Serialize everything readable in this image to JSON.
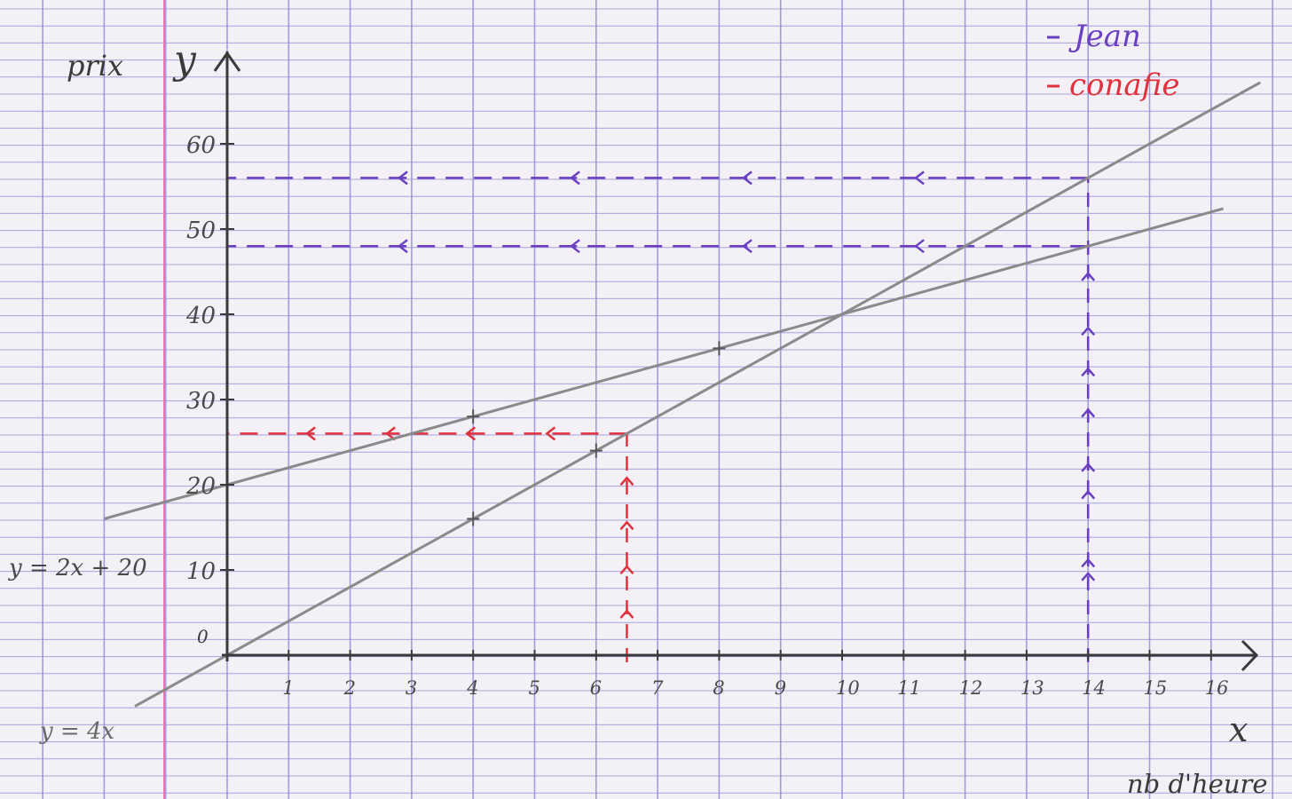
{
  "paper": {
    "grid_color": "#8f88d8",
    "margin_color": "#e879b7",
    "background": "#f3f1f6"
  },
  "chart_data": {
    "type": "line",
    "axes": {
      "y_label": "prix",
      "y_symbol": "y",
      "x_symbol": "x",
      "x_label": "nb d'heure",
      "origin_label": "0",
      "xlim": [
        0,
        16
      ],
      "ylim": [
        0,
        60
      ],
      "x_ticks": [
        1,
        2,
        3,
        4,
        5,
        6,
        7,
        8,
        9,
        10,
        11,
        12,
        13,
        14,
        15,
        16
      ],
      "y_ticks": [
        10,
        20,
        30,
        40,
        50,
        60
      ]
    },
    "series": [
      {
        "name": "y = 2x + 20",
        "label_text": "y = 2x + 20",
        "slope": 2,
        "intercept": 20,
        "x_range": [
          -2,
          16.2
        ],
        "color": "#8a8a8a"
      },
      {
        "name": "y = 4x",
        "label_text": "y = 4x",
        "slope": 4,
        "intercept": 0,
        "x_range": [
          -1.5,
          16.8
        ],
        "color": "#8a8a8a"
      }
    ],
    "marked_points": [
      {
        "x": 4,
        "y": 28
      },
      {
        "x": 8,
        "y": 36
      },
      {
        "x": 4,
        "y": 16
      },
      {
        "x": 6,
        "y": 24
      }
    ],
    "legend": [
      {
        "label": "Jean",
        "color": "#6a3fc2"
      },
      {
        "label": "conafie",
        "color": "#e0323d"
      }
    ],
    "readings": [
      {
        "owner": "conafie",
        "color": "#e0323d",
        "x": 6.5,
        "y": 26
      },
      {
        "owner": "Jean",
        "color": "#6a3fc2",
        "x": 14,
        "y": 56
      },
      {
        "owner": "Jean",
        "color": "#6a3fc2",
        "x": 14,
        "y": 48
      }
    ]
  }
}
